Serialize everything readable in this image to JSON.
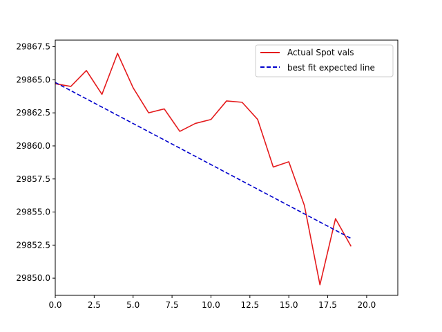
{
  "chart_data": {
    "type": "line",
    "title": "",
    "xlabel": "",
    "ylabel": "",
    "xlim": [
      0,
      22
    ],
    "ylim": [
      29848.7,
      29868.0
    ],
    "grid": false,
    "legend_position": "top-right",
    "x_ticks": [
      0,
      2.5,
      5,
      7.5,
      10,
      12.5,
      15,
      17.5,
      20
    ],
    "x_tick_labels": [
      "0.0",
      "2.5",
      "5.0",
      "7.5",
      "10.0",
      "12.5",
      "15.0",
      "17.5",
      "20.0"
    ],
    "y_ticks": [
      29850,
      29852.5,
      29855,
      29857.5,
      29860,
      29862.5,
      29865,
      29867.5
    ],
    "y_tick_labels": [
      "29850.0",
      "29852.5",
      "29855.0",
      "29857.5",
      "29860.0",
      "29862.5",
      "29865.0",
      "29867.5"
    ],
    "series": [
      {
        "name": "Actual Spot vals",
        "color": "#e41a1c",
        "line_style": "solid",
        "x": [
          0,
          1,
          2,
          3,
          4,
          5,
          6,
          7,
          8,
          9,
          10,
          11,
          12,
          13,
          14,
          15,
          16,
          17,
          18,
          19
        ],
        "values": [
          29864.7,
          29864.5,
          29865.7,
          29863.9,
          29867.0,
          29864.4,
          29862.5,
          29862.8,
          29861.1,
          29861.7,
          29862.0,
          29863.4,
          29863.3,
          29862.0,
          29858.4,
          29858.8,
          29855.5,
          29849.5,
          29854.5,
          29852.4
        ]
      },
      {
        "name": "best fit expected line",
        "color": "#0000cc",
        "line_style": "dashed",
        "x": [
          0,
          19
        ],
        "values": [
          29864.8,
          29853.0
        ]
      }
    ]
  }
}
